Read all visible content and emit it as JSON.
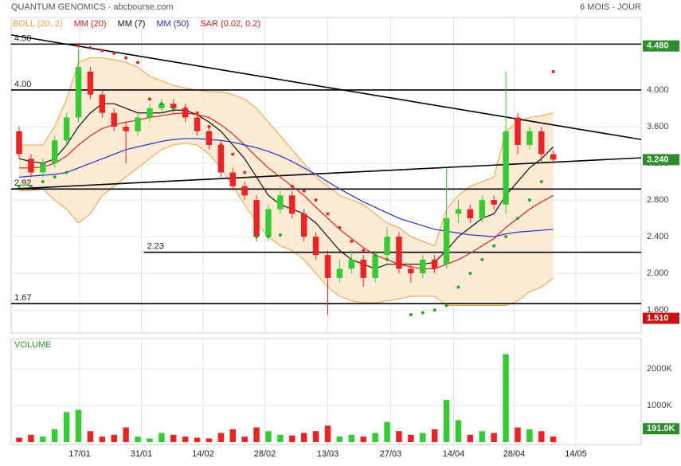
{
  "chart_data": {
    "type": "candlestick",
    "title": "QUANTUM GENOMICS - abcbourse.com",
    "subtitle": "6 MOIS - JOUR",
    "legend": [
      {
        "name": "BOLL (20, 2)",
        "color": "#f0a040"
      },
      {
        "name": "MM (20)",
        "color": "#e02020"
      },
      {
        "name": "MM (7)",
        "color": "#111111"
      },
      {
        "name": "MM (50)",
        "color": "#2030c0"
      },
      {
        "name": "SAR (0.02, 0.2)",
        "color": "#d02020"
      }
    ],
    "xlim": [
      -0.67,
      52.4
    ],
    "xticks": [
      {
        "value": 5.1,
        "label": "17/01"
      },
      {
        "value": 10.3,
        "label": "31/01"
      },
      {
        "value": 15.5,
        "label": "14/02"
      },
      {
        "value": 20.7,
        "label": "28/02"
      },
      {
        "value": 26.0,
        "label": "13/03"
      },
      {
        "value": 31.3,
        "label": "27/03"
      },
      {
        "value": 36.6,
        "label": "14/04"
      },
      {
        "value": 41.7,
        "label": "28/04"
      },
      {
        "value": 46.9,
        "label": "14/05"
      }
    ],
    "ylim": [
      1.35,
      4.79
    ],
    "yticks": [
      {
        "value": 1.6,
        "label": "1.600"
      },
      {
        "value": 2.0,
        "label": "2.000"
      },
      {
        "value": 2.4,
        "label": "2.400"
      },
      {
        "value": 2.8,
        "label": "2.800"
      },
      {
        "value": 3.2,
        "label": "3.200"
      },
      {
        "value": 3.6,
        "label": "3.600"
      },
      {
        "value": 4.0,
        "label": "4.000"
      }
    ],
    "up_color": "#33cc33",
    "down_color": "#ee2222",
    "open": [
      3.55,
      3.25,
      3.1,
      3.2,
      3.45,
      3.7,
      4.2,
      3.95,
      3.75,
      3.6,
      3.55,
      3.7,
      3.8,
      3.85,
      3.8,
      3.7,
      3.55,
      3.4,
      3.1,
      2.95,
      2.8,
      2.4,
      2.7,
      2.85,
      2.65,
      2.4,
      2.2,
      1.95,
      2.05,
      2.15,
      1.95,
      2.2,
      2.4,
      2.05,
      2.0,
      2.15,
      2.1,
      2.65,
      2.7,
      2.6,
      2.8,
      2.75,
      3.7,
      3.4,
      3.55,
      3.3
    ],
    "high": [
      3.6,
      3.3,
      3.25,
      3.5,
      3.75,
      4.45,
      4.25,
      4.0,
      3.8,
      3.65,
      3.75,
      3.85,
      3.9,
      3.9,
      3.85,
      3.75,
      3.6,
      3.45,
      3.15,
      3.0,
      2.85,
      2.75,
      2.95,
      2.9,
      2.7,
      2.45,
      2.25,
      2.15,
      2.25,
      2.2,
      2.25,
      2.5,
      2.45,
      2.1,
      2.2,
      2.2,
      3.15,
      2.8,
      2.75,
      2.85,
      2.85,
      4.2,
      3.75,
      3.6,
      3.6,
      3.35
    ],
    "low": [
      3.25,
      3.05,
      3.05,
      3.15,
      3.4,
      3.65,
      3.9,
      3.7,
      3.55,
      3.2,
      3.5,
      3.65,
      3.75,
      3.75,
      3.65,
      3.5,
      3.35,
      3.05,
      2.9,
      2.8,
      2.35,
      2.35,
      2.65,
      2.6,
      2.35,
      2.15,
      1.55,
      1.9,
      2.0,
      1.85,
      1.9,
      2.15,
      2.0,
      1.9,
      1.95,
      2.0,
      2.05,
      2.55,
      2.55,
      2.55,
      2.7,
      2.65,
      3.3,
      3.35,
      3.2,
      3.2
    ],
    "close": [
      3.3,
      3.1,
      3.2,
      3.45,
      3.7,
      4.25,
      3.95,
      3.75,
      3.6,
      3.55,
      3.7,
      3.8,
      3.85,
      3.8,
      3.7,
      3.55,
      3.4,
      3.1,
      2.95,
      2.85,
      2.4,
      2.7,
      2.85,
      2.65,
      2.4,
      2.2,
      1.95,
      2.05,
      2.15,
      1.95,
      2.2,
      2.4,
      2.05,
      2.0,
      2.15,
      2.05,
      2.6,
      2.7,
      2.6,
      2.8,
      2.75,
      3.55,
      3.4,
      3.55,
      3.3,
      3.24
    ],
    "lines": [
      {
        "name": "MM (7)",
        "color": "#111111",
        "values": [
          3.25,
          3.22,
          3.2,
          3.25,
          3.4,
          3.6,
          3.75,
          3.85,
          3.85,
          3.8,
          3.75,
          3.75,
          3.75,
          3.78,
          3.78,
          3.73,
          3.65,
          3.55,
          3.4,
          3.25,
          3.05,
          2.85,
          2.75,
          2.7,
          2.65,
          2.55,
          2.4,
          2.25,
          2.15,
          2.1,
          2.05,
          2.1,
          2.1,
          2.1,
          2.1,
          2.12,
          2.25,
          2.4,
          2.5,
          2.6,
          2.65,
          2.85,
          3.0,
          3.15,
          3.25,
          3.38
        ]
      },
      {
        "name": "MM (20)",
        "color": "#e02020",
        "values": [
          3.15,
          3.15,
          3.16,
          3.2,
          3.28,
          3.4,
          3.5,
          3.58,
          3.62,
          3.65,
          3.67,
          3.7,
          3.72,
          3.74,
          3.75,
          3.73,
          3.7,
          3.62,
          3.52,
          3.4,
          3.27,
          3.15,
          3.05,
          2.95,
          2.85,
          2.72,
          2.6,
          2.48,
          2.38,
          2.28,
          2.2,
          2.15,
          2.1,
          2.07,
          2.05,
          2.05,
          2.1,
          2.15,
          2.22,
          2.3,
          2.38,
          2.5,
          2.6,
          2.7,
          2.78,
          2.85
        ]
      },
      {
        "name": "MM (50)",
        "color": "#2030c0",
        "values": [
          3.05,
          3.06,
          3.07,
          3.08,
          3.1,
          3.15,
          3.2,
          3.25,
          3.3,
          3.35,
          3.38,
          3.41,
          3.44,
          3.46,
          3.47,
          3.47,
          3.46,
          3.45,
          3.43,
          3.4,
          3.37,
          3.33,
          3.28,
          3.22,
          3.15,
          3.08,
          3.0,
          2.92,
          2.85,
          2.78,
          2.72,
          2.66,
          2.6,
          2.56,
          2.52,
          2.48,
          2.46,
          2.44,
          2.42,
          2.41,
          2.4,
          2.43,
          2.45,
          2.46,
          2.47,
          2.48
        ]
      }
    ],
    "boll_upper": [
      3.4,
      3.4,
      3.4,
      3.6,
      3.9,
      4.3,
      4.35,
      4.35,
      4.33,
      4.3,
      4.25,
      4.15,
      4.1,
      4.05,
      4.02,
      4.0,
      3.98,
      3.98,
      3.95,
      3.9,
      3.8,
      3.65,
      3.5,
      3.35,
      3.2,
      3.05,
      2.95,
      2.85,
      2.8,
      2.75,
      2.65,
      2.55,
      2.5,
      2.4,
      2.35,
      2.3,
      2.7,
      2.85,
      2.95,
      3.0,
      3.05,
      3.55,
      3.65,
      3.7,
      3.72,
      3.75
    ],
    "boll_lower": [
      2.9,
      2.9,
      2.92,
      2.8,
      2.7,
      2.55,
      2.65,
      2.85,
      2.95,
      3.05,
      3.15,
      3.25,
      3.35,
      3.4,
      3.42,
      3.4,
      3.3,
      3.15,
      2.95,
      2.75,
      2.55,
      2.4,
      2.3,
      2.25,
      2.15,
      2.0,
      1.85,
      1.75,
      1.7,
      1.68,
      1.68,
      1.7,
      1.72,
      1.75,
      1.75,
      1.75,
      1.65,
      1.65,
      1.65,
      1.65,
      1.65,
      1.65,
      1.7,
      1.8,
      1.85,
      1.95
    ],
    "sar": [
      2.95,
      2.95,
      3.0,
      3.05,
      3.1,
      4.48,
      4.46,
      4.43,
      4.4,
      4.35,
      4.3,
      3.9,
      3.85,
      3.8,
      3.8,
      3.75,
      3.6,
      3.4,
      3.3,
      3.1,
      2.4,
      2.4,
      2.42,
      2.95,
      2.9,
      2.8,
      2.65,
      2.5,
      2.35,
      2.25,
      2.2,
      2.15,
      2.1,
      1.55,
      1.57,
      1.6,
      1.65,
      1.85,
      2.0,
      2.15,
      2.3,
      2.4,
      2.6,
      2.8,
      3.0,
      4.2
    ],
    "levels": [
      {
        "value": 4.5,
        "label": "4.50",
        "from": -0.67
      },
      {
        "value": 4.0,
        "label": "4.00",
        "from": -0.67
      },
      {
        "value": 2.92,
        "label": "2.92",
        "from": -0.67
      },
      {
        "value": 2.23,
        "label": "2.23",
        "from": 10.5
      },
      {
        "value": 1.67,
        "label": "1.67",
        "from": -0.67
      }
    ],
    "trendlines": [
      {
        "start": [
          -0.67,
          4.6
        ],
        "end": [
          52.4,
          3.46
        ]
      },
      {
        "start": [
          -0.67,
          2.92
        ],
        "end": [
          52.4,
          3.26
        ]
      }
    ],
    "badges": [
      {
        "value": 4.48,
        "label": "4.480",
        "color": "#2e8b2e"
      },
      {
        "value": 3.24,
        "label": "3.240",
        "color": "#2e8b2e"
      },
      {
        "value": 1.51,
        "label": "1.510",
        "color": "#cc1111"
      }
    ],
    "volume": {
      "label": "VOLUME",
      "ylim": [
        -65,
        2826
      ],
      "yticks": [
        {
          "value": 1000,
          "label": "1000K"
        },
        {
          "value": 2000,
          "label": "2000K"
        }
      ],
      "values": [
        120,
        200,
        150,
        350,
        820,
        880,
        300,
        150,
        200,
        400,
        150,
        100,
        250,
        200,
        150,
        120,
        100,
        250,
        350,
        150,
        400,
        300,
        200,
        180,
        250,
        300,
        450,
        150,
        200,
        150,
        250,
        550,
        300,
        200,
        250,
        350,
        1150,
        600,
        200,
        300,
        250,
        2400,
        400,
        350,
        300,
        150
      ],
      "badge": {
        "value": 191,
        "label": "191.0K",
        "color": "#2e8b2e"
      }
    }
  }
}
